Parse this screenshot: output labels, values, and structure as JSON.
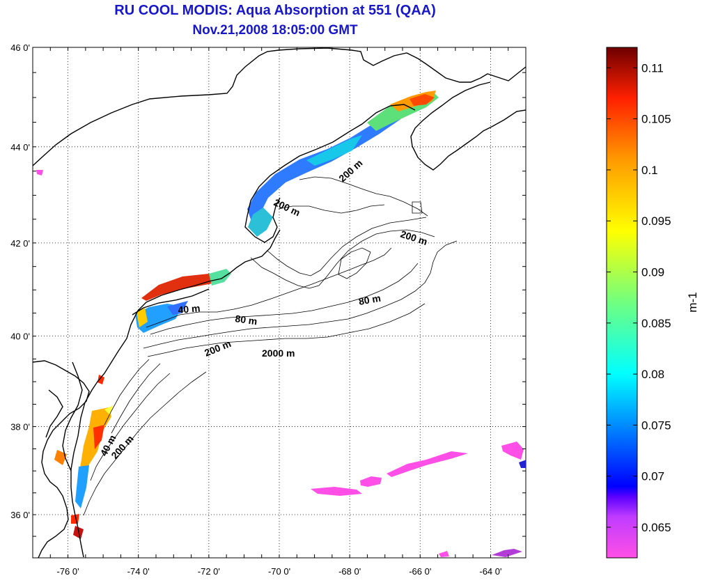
{
  "title": "RU COOL MODIS: Aqua Absorption at 551 (QAA)",
  "subtitle": "Nov.21,2008 18:05:00 GMT",
  "map": {
    "lon_ticks": [
      "-76 0'",
      "-74 0'",
      "-72 0'",
      "-70 0'",
      "-68 0'",
      "-66 0'",
      "-64 0'"
    ],
    "lat_ticks": [
      "46 0'",
      "44 0'",
      "42 0'",
      "40 0'",
      "38 0'",
      "36 0'"
    ],
    "lon_range": [
      -77,
      -63
    ],
    "lat_range": [
      35,
      46
    ],
    "grid": "dotted",
    "contours": [
      "200 m",
      "200 m",
      "200 m",
      "40 m",
      "80 m",
      "80 m",
      "200 m",
      "2000 m",
      "40 m",
      "200 m"
    ]
  },
  "colorbar": {
    "unit": "m-1",
    "tick_labels": [
      "0.11",
      "0.105",
      "0.1",
      "0.095",
      "0.09",
      "0.085",
      "0.08",
      "0.075",
      "0.07",
      "0.065"
    ],
    "range": [
      0.062,
      0.112
    ],
    "colors": [
      "#ff4fe6",
      "#b13aff",
      "#0000ff",
      "#00a6ff",
      "#00ffff",
      "#7dff7d",
      "#ffff00",
      "#ff9a00",
      "#ff2400",
      "#6e0000"
    ]
  }
}
